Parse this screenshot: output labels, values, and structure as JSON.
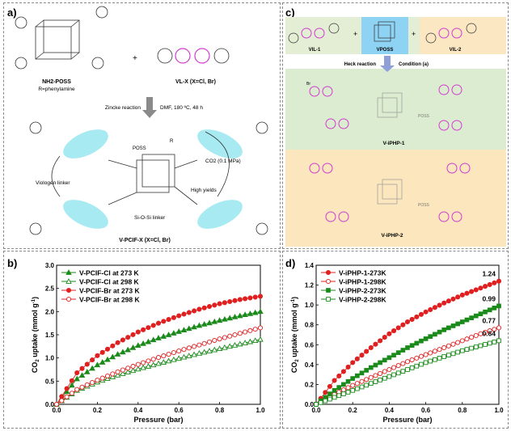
{
  "panels": {
    "a": {
      "label": "a)",
      "reactant1": "NH2-POSS",
      "reactant1_sub": "R=phenylamine",
      "reactant2": "VL-X (X=Cl, Br)",
      "arrow_label": "Zincke reaction",
      "conditions": "DMF, 180 ºC, 48 h",
      "viologen_linker": "Viologen linker",
      "sio_linker": "Si-O-Si linker",
      "co2": "CO2 (0.1 MPa)",
      "high_yields": "High yields",
      "product": "V-PCIF-X (X=Cl, Br)",
      "poss_label": "POSS",
      "r_label": "R"
    },
    "c": {
      "label": "c)",
      "vil1": "VIL-1",
      "vposs": "VPOSS",
      "vil2": "VIL-2",
      "heck": "Heck reaction",
      "condition": "Condition (a)",
      "product1": "V-iPHP-1",
      "product2": "V-iPHP-2",
      "poss_label": "POSS",
      "br_label": "Br"
    },
    "b": {
      "label": "b)"
    },
    "d": {
      "label": "d)"
    }
  },
  "colors": {
    "red": "#e02020",
    "green": "#1a8a1a",
    "c_top_bg": "#e4eed5",
    "c_vposs_bg": "#8fd3f4",
    "c_vil2_bg": "#fbe7c2",
    "c_mid_bg": "#dcecd0",
    "c_bot_bg": "#fbe6bd",
    "viologen_pink": "#d13bd1",
    "viologen_blue": "#3b5bd1",
    "cyan_oval": "#5fd8e8"
  },
  "chart_data": [
    {
      "id": "b",
      "type": "line",
      "xlabel": "Pressure (bar)",
      "ylabel": "CO2 uptake (mmol g-1)",
      "xlim": [
        0,
        1.0
      ],
      "ylim": [
        0,
        3.0
      ],
      "xticks": [
        "0.0",
        "0.2",
        "0.4",
        "0.6",
        "0.8",
        "1.0"
      ],
      "yticks": [
        "0.0",
        "0.5",
        "1.0",
        "1.5",
        "2.0",
        "2.5",
        "3.0"
      ],
      "legend_position": "top-left",
      "series": [
        {
          "name": "V-PCIF-Cl at 273 K",
          "color": "#1a8a1a",
          "marker": "triangle",
          "filled": true,
          "x": [
            0,
            0.1,
            0.2,
            0.3,
            0.4,
            0.5,
            0.6,
            0.7,
            0.8,
            0.9,
            1.0
          ],
          "values": [
            0,
            0.55,
            0.85,
            1.08,
            1.27,
            1.43,
            1.57,
            1.7,
            1.81,
            1.91,
            2.0
          ]
        },
        {
          "name": "V-PCIF-Cl at 298 K",
          "color": "#1a8a1a",
          "marker": "triangle",
          "filled": false,
          "x": [
            0,
            0.1,
            0.2,
            0.3,
            0.4,
            0.5,
            0.6,
            0.7,
            0.8,
            0.9,
            1.0
          ],
          "values": [
            0,
            0.3,
            0.48,
            0.63,
            0.76,
            0.88,
            0.99,
            1.1,
            1.2,
            1.3,
            1.4
          ]
        },
        {
          "name": "V-PCIF-Br at 273 K",
          "color": "#e02020",
          "marker": "circle",
          "filled": true,
          "x": [
            0,
            0.1,
            0.2,
            0.3,
            0.4,
            0.5,
            0.6,
            0.7,
            0.8,
            0.9,
            1.0
          ],
          "values": [
            0,
            0.68,
            1.05,
            1.33,
            1.56,
            1.75,
            1.91,
            2.05,
            2.17,
            2.26,
            2.33
          ]
        },
        {
          "name": "V-PCIF-Br at 298 K",
          "color": "#e02020",
          "marker": "circle",
          "filled": false,
          "x": [
            0,
            0.1,
            0.2,
            0.3,
            0.4,
            0.5,
            0.6,
            0.7,
            0.8,
            0.9,
            1.0
          ],
          "values": [
            0,
            0.32,
            0.52,
            0.7,
            0.86,
            1.01,
            1.15,
            1.28,
            1.41,
            1.53,
            1.65
          ]
        }
      ]
    },
    {
      "id": "d",
      "type": "line",
      "xlabel": "Pressure (bar)",
      "ylabel": "CO2 uptake (mmol g-1)",
      "xlim": [
        0,
        1.0
      ],
      "ylim": [
        0,
        1.4
      ],
      "xticks": [
        "0.0",
        "0.2",
        "0.4",
        "0.6",
        "0.8",
        "1.0"
      ],
      "yticks": [
        "0.0",
        "0.2",
        "0.4",
        "0.6",
        "0.8",
        "1.0",
        "1.2",
        "1.4"
      ],
      "legend_position": "top-left",
      "annotations": [
        "1.24",
        "0.99",
        "0.77",
        "0.64"
      ],
      "series": [
        {
          "name": "V-iPHP-1-273K",
          "color": "#e02020",
          "marker": "circle",
          "filled": true,
          "x": [
            0,
            0.1,
            0.2,
            0.3,
            0.4,
            0.5,
            0.6,
            0.7,
            0.8,
            0.9,
            1.0
          ],
          "values": [
            0,
            0.24,
            0.42,
            0.57,
            0.71,
            0.83,
            0.93,
            1.02,
            1.1,
            1.17,
            1.24
          ]
        },
        {
          "name": "V-iPHP-1-298K",
          "color": "#e02020",
          "marker": "circle",
          "filled": false,
          "x": [
            0,
            0.1,
            0.2,
            0.3,
            0.4,
            0.5,
            0.6,
            0.7,
            0.8,
            0.9,
            1.0
          ],
          "values": [
            0,
            0.1,
            0.19,
            0.27,
            0.35,
            0.43,
            0.5,
            0.57,
            0.64,
            0.71,
            0.77
          ]
        },
        {
          "name": "V-iPHP-2-273K",
          "color": "#1a8a1a",
          "marker": "square",
          "filled": true,
          "x": [
            0,
            0.1,
            0.2,
            0.3,
            0.4,
            0.5,
            0.6,
            0.7,
            0.8,
            0.9,
            1.0
          ],
          "values": [
            0,
            0.14,
            0.26,
            0.37,
            0.47,
            0.57,
            0.66,
            0.75,
            0.83,
            0.91,
            0.99
          ]
        },
        {
          "name": "V-iPHP-2-298K",
          "color": "#1a8a1a",
          "marker": "square",
          "filled": false,
          "x": [
            0,
            0.1,
            0.2,
            0.3,
            0.4,
            0.5,
            0.6,
            0.7,
            0.8,
            0.9,
            1.0
          ],
          "values": [
            0,
            0.07,
            0.14,
            0.21,
            0.28,
            0.35,
            0.42,
            0.48,
            0.54,
            0.59,
            0.64
          ]
        }
      ]
    }
  ]
}
